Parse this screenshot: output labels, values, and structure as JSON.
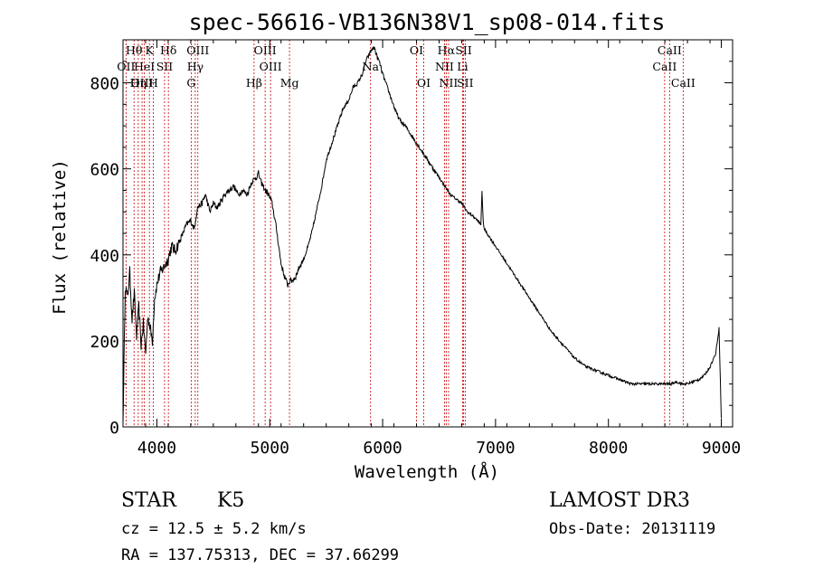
{
  "chart_data": {
    "type": "line",
    "title": "spec-56616-VB136N38V1_sp08-014.fits",
    "xlabel": "Wavelength (Å)",
    "ylabel": "Flux (relative)",
    "xlim": [
      3700,
      9100
    ],
    "ylim": [
      0,
      900
    ],
    "x_ticks": [
      4000,
      5000,
      6000,
      7000,
      8000,
      9000
    ],
    "x_tick_labels": [
      "4000",
      "5000",
      "6000",
      "7000",
      "8000",
      "9000"
    ],
    "y_ticks": [
      0,
      200,
      400,
      600,
      800
    ],
    "y_tick_labels": [
      "0",
      "200",
      "400",
      "600",
      "800"
    ],
    "series": [
      {
        "name": "flux",
        "x": [
          3700,
          3720,
          3740,
          3760,
          3780,
          3800,
          3820,
          3840,
          3860,
          3880,
          3900,
          3920,
          3940,
          3960,
          3980,
          4000,
          4030,
          4060,
          4100,
          4130,
          4160,
          4200,
          4230,
          4260,
          4300,
          4330,
          4360,
          4400,
          4430,
          4470,
          4500,
          4530,
          4560,
          4600,
          4640,
          4680,
          4720,
          4760,
          4800,
          4840,
          4880,
          4900,
          4920,
          4940,
          4960,
          4990,
          5020,
          5060,
          5100,
          5130,
          5160,
          5180,
          5200,
          5230,
          5260,
          5300,
          5340,
          5380,
          5420,
          5460,
          5500,
          5550,
          5600,
          5650,
          5700,
          5740,
          5780,
          5820,
          5850,
          5870,
          5890,
          5910,
          5930,
          5950,
          5970,
          6000,
          6040,
          6080,
          6120,
          6160,
          6200,
          6250,
          6300,
          6350,
          6400,
          6450,
          6500,
          6550,
          6600,
          6650,
          6700,
          6750,
          6800,
          6840,
          6870,
          6880,
          6890,
          6900,
          6950,
          7000,
          7100,
          7200,
          7300,
          7400,
          7500,
          7600,
          7700,
          7800,
          7900,
          8000,
          8100,
          8200,
          8300,
          8400,
          8500,
          8560,
          8600,
          8650,
          8700,
          8750,
          8800,
          8850,
          8900,
          8950,
          8980,
          9000
        ],
        "values": [
          10,
          330,
          300,
          360,
          250,
          310,
          210,
          280,
          190,
          240,
          170,
          260,
          230,
          200,
          300,
          330,
          360,
          370,
          390,
          420,
          410,
          430,
          450,
          470,
          480,
          460,
          510,
          520,
          540,
          500,
          520,
          510,
          520,
          540,
          550,
          560,
          540,
          550,
          540,
          570,
          580,
          590,
          570,
          560,
          550,
          540,
          520,
          460,
          380,
          350,
          330,
          340,
          340,
          350,
          370,
          390,
          420,
          460,
          510,
          560,
          620,
          660,
          700,
          740,
          760,
          790,
          800,
          820,
          850,
          860,
          870,
          880,
          880,
          860,
          850,
          820,
          790,
          760,
          730,
          710,
          700,
          680,
          660,
          640,
          620,
          600,
          580,
          560,
          540,
          530,
          520,
          500,
          490,
          480,
          470,
          550,
          480,
          460,
          440,
          420,
          380,
          340,
          300,
          260,
          220,
          190,
          160,
          140,
          130,
          120,
          110,
          100,
          100,
          100,
          100,
          100,
          105,
          100,
          100,
          105,
          110,
          120,
          140,
          170,
          230,
          20
        ]
      }
    ],
    "spectral_lines": [
      {
        "label": "Hθ",
        "wavelength": 3798,
        "row": 1
      },
      {
        "label": "OII",
        "wavelength": 3727,
        "row": 2
      },
      {
        "label": "Hη",
        "wavelength": 3835,
        "row": 3
      },
      {
        "label": "OIII",
        "wavelength": 3869,
        "row": 3
      },
      {
        "label": "HeI",
        "wavelength": 3889,
        "row": 2
      },
      {
        "label": "K",
        "wavelength": 3934,
        "row": 1
      },
      {
        "label": "SII",
        "wavelength": 4068,
        "row": 2
      },
      {
        "label": "H",
        "wavelength": 3968,
        "row": 3
      },
      {
        "label": "Hδ",
        "wavelength": 4102,
        "row": 1
      },
      {
        "label": "OIII",
        "wavelength": 4363,
        "row": 1
      },
      {
        "label": "Hγ",
        "wavelength": 4340,
        "row": 2
      },
      {
        "label": "G",
        "wavelength": 4304,
        "row": 3
      },
      {
        "label": "Hβ",
        "wavelength": 4861,
        "row": 3
      },
      {
        "label": "OIII",
        "wavelength": 4959,
        "row": 1
      },
      {
        "label": "OIII",
        "wavelength": 5007,
        "row": 2
      },
      {
        "label": "Mg",
        "wavelength": 5175,
        "row": 3
      },
      {
        "label": "Na",
        "wavelength": 5893,
        "row": 2
      },
      {
        "label": "OI",
        "wavelength": 6300,
        "row": 1
      },
      {
        "label": "OI",
        "wavelength": 6364,
        "row": 3
      },
      {
        "label": "Hα",
        "wavelength": 6563,
        "row": 1
      },
      {
        "label": "NII",
        "wavelength": 6548,
        "row": 2
      },
      {
        "label": "NII",
        "wavelength": 6584,
        "row": 3
      },
      {
        "label": "SII",
        "wavelength": 6717,
        "row": 1
      },
      {
        "label": "Li",
        "wavelength": 6708,
        "row": 2
      },
      {
        "label": "SII",
        "wavelength": 6731,
        "row": 3
      },
      {
        "label": "CaII",
        "wavelength": 8542,
        "row": 1
      },
      {
        "label": "CaII",
        "wavelength": 8498,
        "row": 2
      },
      {
        "label": "CaII",
        "wavelength": 8662,
        "row": 3
      }
    ],
    "line_color": "#000000",
    "marker_color": "#cc0000"
  },
  "info": {
    "class": "STAR",
    "subclass": "K5",
    "survey": "LAMOST DR3",
    "cz": "cz = 12.5 ± 5.2 km/s",
    "obs_date": "Obs-Date: 20131119",
    "coords": "RA = 137.75313, DEC =  37.66299"
  }
}
